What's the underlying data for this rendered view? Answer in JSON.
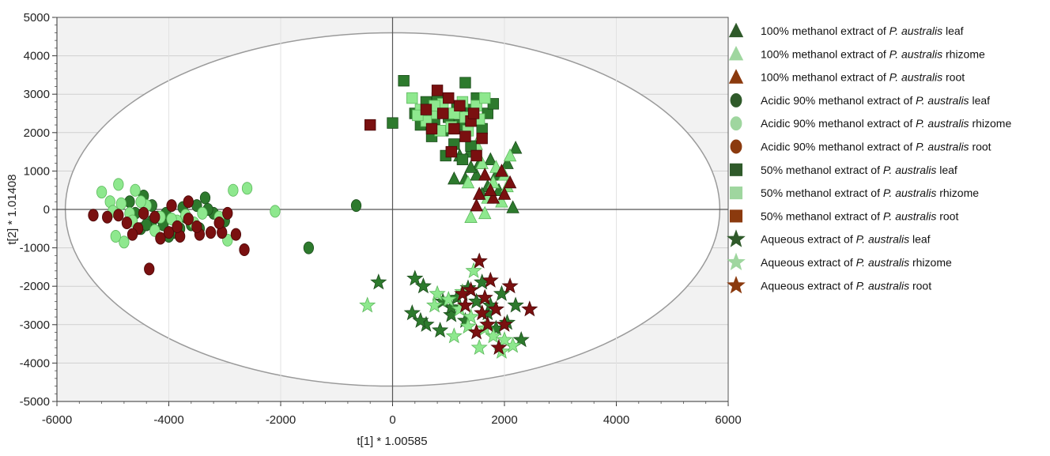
{
  "chart_data": {
    "type": "scatter",
    "xlabel": "t[1] * 1.00585",
    "ylabel": "t[2] * 1.01408",
    "xlim": [
      -6000,
      6000
    ],
    "ylim": [
      -5000,
      5000
    ],
    "x_ticks": [
      -6000,
      -4000,
      -2000,
      0,
      2000,
      4000,
      6000
    ],
    "y_ticks": [
      -5000,
      -4000,
      -3000,
      -2000,
      -1000,
      0,
      1000,
      2000,
      3000,
      4000,
      5000
    ],
    "grid": true,
    "legend_position": "right",
    "ellipse": {
      "center": [
        0,
        0
      ],
      "rx": 5850,
      "ry": 4600
    },
    "colors": {
      "leaf": "#2d7a2d",
      "rhizome": "#8ee88e",
      "root": "#7a1010",
      "legend_root": "#8b3a0e",
      "legend_leaf": "#2f5a2a",
      "legend_rhizome": "#9fd69f"
    },
    "series": [
      {
        "name": "100% methanol extract of P. australis leaf",
        "label_pre": "100% methanol extract of ",
        "label_post": " leaf",
        "marker": "triangle",
        "tissue": "leaf",
        "points": [
          [
            1380,
            1500
          ],
          [
            1500,
            900
          ],
          [
            1700,
            600
          ],
          [
            1850,
            900
          ],
          [
            2050,
            1200
          ],
          [
            2200,
            1600
          ],
          [
            1200,
            1400
          ],
          [
            1550,
            1200
          ],
          [
            1300,
            800
          ],
          [
            1600,
            400
          ],
          [
            1900,
            500
          ],
          [
            2150,
            50
          ],
          [
            1750,
            1300
          ],
          [
            1400,
            1100
          ],
          [
            1100,
            800
          ]
        ]
      },
      {
        "name": "100% methanol extract of P. australis rhizome",
        "label_pre": "100% methanol extract of ",
        "label_post": " rhizome",
        "marker": "triangle",
        "tissue": "rhizome",
        "points": [
          [
            1400,
            -200
          ],
          [
            1600,
            1200
          ],
          [
            1800,
            700
          ],
          [
            2100,
            1400
          ],
          [
            2000,
            900
          ],
          [
            1700,
            300
          ],
          [
            1500,
            1700
          ],
          [
            1350,
            700
          ],
          [
            1950,
            200
          ],
          [
            1650,
            -100
          ],
          [
            1850,
            1100
          ],
          [
            2050,
            600
          ]
        ]
      },
      {
        "name": "100% methanol extract of P. australis root",
        "label_pre": "100% methanol extract of ",
        "label_post": " root",
        "marker": "triangle",
        "tissue": "root",
        "points": [
          [
            1550,
            400
          ],
          [
            1800,
            300
          ],
          [
            2100,
            700
          ],
          [
            1650,
            900
          ],
          [
            1950,
            1000
          ],
          [
            1500,
            100
          ],
          [
            1750,
            500
          ],
          [
            2000,
            400
          ]
        ]
      },
      {
        "name": "Acidic 90% methanol extract of P. australis leaf",
        "label_pre": "Acidic 90% methanol extract of ",
        "label_post": " leaf",
        "marker": "circle",
        "tissue": "leaf",
        "points": [
          [
            -4450,
            350
          ],
          [
            -4300,
            100
          ],
          [
            -4100,
            -400
          ],
          [
            -3900,
            -600
          ],
          [
            -3700,
            -200
          ],
          [
            -3500,
            100
          ],
          [
            -3350,
            300
          ],
          [
            -3200,
            -100
          ],
          [
            -3000,
            -300
          ],
          [
            -4600,
            -100
          ],
          [
            -4200,
            -200
          ],
          [
            -3800,
            -500
          ],
          [
            -4000,
            -700
          ],
          [
            -3600,
            -400
          ],
          [
            -4500,
            -500
          ],
          [
            -4300,
            -300
          ],
          [
            -4050,
            -100
          ],
          [
            -3450,
            -500
          ],
          [
            -3300,
            0
          ],
          [
            -650,
            100
          ],
          [
            -1500,
            -1000
          ],
          [
            -4700,
            200
          ],
          [
            -4400,
            -400
          ],
          [
            -3750,
            50
          ]
        ]
      },
      {
        "name": "Acidic 90% methanol extract of P. australis rhizome",
        "label_pre": "Acidic 90% methanol extract of ",
        "label_post": " rhizome",
        "marker": "circle",
        "tissue": "rhizome",
        "points": [
          [
            -5200,
            450
          ],
          [
            -4900,
            650
          ],
          [
            -5050,
            200
          ],
          [
            -4700,
            -100
          ],
          [
            -4800,
            -850
          ],
          [
            -4950,
            -700
          ],
          [
            -4600,
            500
          ],
          [
            -4400,
            100
          ],
          [
            -4150,
            -200
          ],
          [
            -3850,
            -300
          ],
          [
            -3700,
            -150
          ],
          [
            -3400,
            -100
          ],
          [
            -3100,
            -200
          ],
          [
            -2850,
            500
          ],
          [
            -2600,
            550
          ],
          [
            -2100,
            -50
          ],
          [
            -2950,
            -800
          ],
          [
            -5000,
            -50
          ],
          [
            -4650,
            -300
          ],
          [
            -4500,
            200
          ],
          [
            -4250,
            -550
          ],
          [
            -3950,
            -250
          ],
          [
            -3550,
            -350
          ],
          [
            -4850,
            150
          ]
        ]
      },
      {
        "name": "Acidic 90% methanol extract of P. australis root",
        "label_pre": "Acidic 90% methanol extract of ",
        "label_post": " root",
        "marker": "circle",
        "tissue": "root",
        "points": [
          [
            -5350,
            -150
          ],
          [
            -5100,
            -200
          ],
          [
            -4900,
            -150
          ],
          [
            -4750,
            -350
          ],
          [
            -4550,
            -500
          ],
          [
            -4350,
            -1550
          ],
          [
            -4150,
            -750
          ],
          [
            -4000,
            -600
          ],
          [
            -3800,
            -700
          ],
          [
            -3650,
            -250
          ],
          [
            -3450,
            -650
          ],
          [
            -3250,
            -600
          ],
          [
            -3050,
            -600
          ],
          [
            -2800,
            -650
          ],
          [
            -2650,
            -1050
          ],
          [
            -3650,
            200
          ],
          [
            -3950,
            100
          ],
          [
            -4250,
            -200
          ],
          [
            -4450,
            -100
          ],
          [
            -3500,
            -450
          ],
          [
            -2950,
            -100
          ],
          [
            -3100,
            -350
          ],
          [
            -4650,
            -650
          ],
          [
            -3850,
            -450
          ]
        ]
      },
      {
        "name": "50% methanol extract of P. australis leaf",
        "label_pre": "50% methanol extract of ",
        "label_post": " leaf",
        "marker": "square",
        "tissue": "leaf",
        "points": [
          [
            200,
            3350
          ],
          [
            400,
            2500
          ],
          [
            600,
            2800
          ],
          [
            800,
            2900
          ],
          [
            1000,
            2400
          ],
          [
            1200,
            2200
          ],
          [
            1400,
            2600
          ],
          [
            1600,
            2100
          ],
          [
            1300,
            3300
          ],
          [
            900,
            2050
          ],
          [
            700,
            1900
          ],
          [
            1100,
            1700
          ],
          [
            1500,
            2900
          ],
          [
            1700,
            2500
          ],
          [
            1800,
            2750
          ],
          [
            500,
            2200
          ],
          [
            950,
            1400
          ],
          [
            1250,
            1300
          ],
          [
            1400,
            1650
          ],
          [
            0,
            2250
          ],
          [
            750,
            2350
          ],
          [
            1150,
            2650
          ]
        ]
      },
      {
        "name": "50% methanol extract of P. australis rhizome",
        "label_pre": "50% methanol extract of ",
        "label_post": " rhizome",
        "marker": "square",
        "tissue": "rhizome",
        "points": [
          [
            350,
            2900
          ],
          [
            500,
            2600
          ],
          [
            700,
            2500
          ],
          [
            900,
            2750
          ],
          [
            1100,
            2500
          ],
          [
            1300,
            2400
          ],
          [
            1500,
            2700
          ],
          [
            1650,
            2900
          ],
          [
            600,
            2300
          ],
          [
            850,
            2050
          ],
          [
            1050,
            2150
          ],
          [
            1350,
            2050
          ],
          [
            1550,
            2350
          ],
          [
            450,
            2450
          ],
          [
            750,
            2700
          ],
          [
            1250,
            2800
          ]
        ]
      },
      {
        "name": "50% methanol extract of P. australis root",
        "label_pre": "50% methanol extract of ",
        "label_post": " root",
        "marker": "square",
        "tissue": "root",
        "points": [
          [
            -400,
            2200
          ],
          [
            800,
            3100
          ],
          [
            1000,
            2900
          ],
          [
            1200,
            2700
          ],
          [
            1400,
            2300
          ],
          [
            1600,
            1850
          ],
          [
            1100,
            2100
          ],
          [
            900,
            2500
          ],
          [
            700,
            2100
          ],
          [
            1300,
            1900
          ],
          [
            1050,
            1500
          ],
          [
            1500,
            1400
          ],
          [
            600,
            2600
          ],
          [
            1450,
            2500
          ]
        ]
      },
      {
        "name": "Aqueous extract of P. australis leaf",
        "label_pre": "Aqueous extract of ",
        "label_post": " leaf",
        "marker": "star",
        "tissue": "leaf",
        "points": [
          [
            -250,
            -1900
          ],
          [
            400,
            -1800
          ],
          [
            550,
            -2000
          ],
          [
            350,
            -2700
          ],
          [
            600,
            -3000
          ],
          [
            850,
            -3150
          ],
          [
            1050,
            -2750
          ],
          [
            1150,
            -2300
          ],
          [
            1350,
            -2050
          ],
          [
            1500,
            -2400
          ],
          [
            1700,
            -2700
          ],
          [
            1850,
            -3100
          ],
          [
            2050,
            -2950
          ],
          [
            2200,
            -2500
          ],
          [
            2300,
            -3400
          ],
          [
            1950,
            -2200
          ],
          [
            1600,
            -1900
          ],
          [
            1300,
            -2900
          ],
          [
            1050,
            -2550
          ],
          [
            1750,
            -2500
          ],
          [
            500,
            -2900
          ],
          [
            900,
            -2400
          ]
        ]
      },
      {
        "name": "Aqueous extract of P. australis rhizome",
        "label_pre": "Aqueous extract of ",
        "label_post": " rhizome",
        "marker": "star",
        "tissue": "rhizome",
        "points": [
          [
            -450,
            -2500
          ],
          [
            800,
            -2200
          ],
          [
            1000,
            -2350
          ],
          [
            1200,
            -2600
          ],
          [
            1400,
            -2800
          ],
          [
            1550,
            -3600
          ],
          [
            1800,
            -3300
          ],
          [
            1950,
            -3700
          ],
          [
            2150,
            -3550
          ],
          [
            1650,
            -3100
          ],
          [
            1450,
            -1600
          ],
          [
            1350,
            -3050
          ],
          [
            1100,
            -3300
          ],
          [
            2000,
            -3400
          ],
          [
            750,
            -2500
          ],
          [
            1250,
            -2150
          ]
        ]
      },
      {
        "name": "Aqueous extract of P. australis root",
        "label_pre": "Aqueous extract of ",
        "label_post": " root",
        "marker": "star",
        "tissue": "root",
        "points": [
          [
            1550,
            -1350
          ],
          [
            1400,
            -2100
          ],
          [
            1650,
            -2300
          ],
          [
            1850,
            -2600
          ],
          [
            2100,
            -2000
          ],
          [
            2450,
            -2600
          ],
          [
            1700,
            -3000
          ],
          [
            1900,
            -3600
          ],
          [
            1500,
            -3200
          ],
          [
            1300,
            -2500
          ],
          [
            1750,
            -1850
          ],
          [
            2000,
            -3000
          ],
          [
            1600,
            -2700
          ],
          [
            1250,
            -2200
          ]
        ]
      }
    ],
    "legend_items": [
      {
        "marker": "triangle",
        "color": "#2f5a2a",
        "label_pre": "100% methanol extract of ",
        "label_italic": "P. australis",
        "label_post": " leaf"
      },
      {
        "marker": "triangle",
        "color": "#9fd69f",
        "label_pre": "100% methanol extract of ",
        "label_italic": "P. australis",
        "label_post": " rhizome"
      },
      {
        "marker": "triangle",
        "color": "#8b3a0e",
        "label_pre": "100% methanol extract of ",
        "label_italic": "P. australis",
        "label_post": " root"
      },
      {
        "marker": "circle",
        "color": "#2f5a2a",
        "label_pre": "Acidic 90% methanol extract of ",
        "label_italic": "P. australis",
        "label_post": " leaf"
      },
      {
        "marker": "circle",
        "color": "#9fd69f",
        "label_pre": "Acidic 90% methanol extract of ",
        "label_italic": "P. australis",
        "label_post": " rhizome"
      },
      {
        "marker": "circle",
        "color": "#8b3a0e",
        "label_pre": "Acidic 90% methanol extract of ",
        "label_italic": "P. australis",
        "label_post": " root"
      },
      {
        "marker": "square",
        "color": "#2f5a2a",
        "label_pre": "50% methanol extract of ",
        "label_italic": "P. australis",
        "label_post": " leaf"
      },
      {
        "marker": "square",
        "color": "#9fd69f",
        "label_pre": "50% methanol extract of ",
        "label_italic": "P. australis",
        "label_post": " rhizome"
      },
      {
        "marker": "square",
        "color": "#8b3a0e",
        "label_pre": "50% methanol extract of ",
        "label_italic": "P. australis",
        "label_post": " root"
      },
      {
        "marker": "star",
        "color": "#2f5a2a",
        "label_pre": "Aqueous extract of ",
        "label_italic": "P. australis",
        "label_post": " leaf"
      },
      {
        "marker": "star",
        "color": "#9fd69f",
        "label_pre": "Aqueous extract of ",
        "label_italic": "P. australis",
        "label_post": " rhizome"
      },
      {
        "marker": "star",
        "color": "#8b3a0e",
        "label_pre": "Aqueous extract of ",
        "label_italic": "P. australis",
        "label_post": " root"
      }
    ]
  }
}
